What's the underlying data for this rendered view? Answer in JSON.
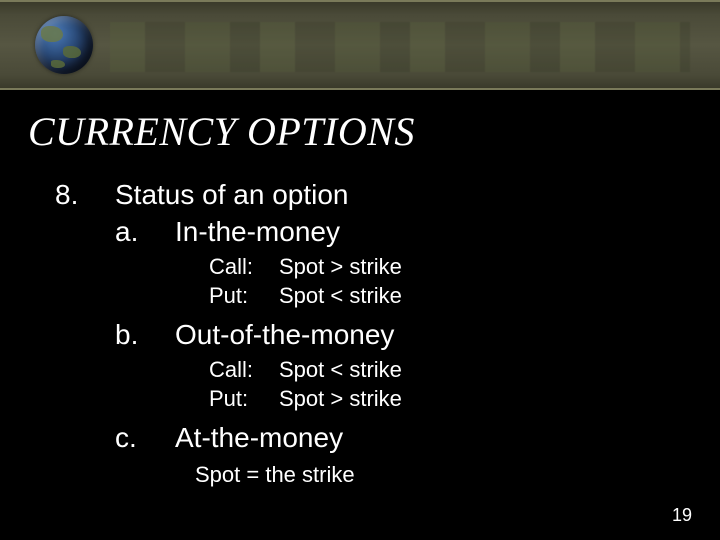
{
  "slide": {
    "title": "CURRENCY OPTIONS",
    "item_number": "8.",
    "item_heading": "Status of an option",
    "subitems": {
      "a": {
        "letter": "a.",
        "label": "In-the-money",
        "call_label": "Call:",
        "call_cond": "Spot > strike",
        "put_label": "Put:",
        "put_cond": "Spot < strike"
      },
      "b": {
        "letter": "b.",
        "label": "Out-of-the-money",
        "call_label": "Call:",
        "call_cond": "Spot < strike",
        "put_label": "Put:",
        "put_cond": "Spot > strike"
      },
      "c": {
        "letter": "c.",
        "label": "At-the-money",
        "cond": "Spot = the strike"
      }
    },
    "page_number": "19"
  },
  "style": {
    "background_color": "#000000",
    "text_color": "#ffffff",
    "title_font": "Times New Roman italic",
    "title_fontsize_pt": 30,
    "body_font": "Verdana",
    "body_fontsize_pt": 21,
    "detail_fontsize_pt": 16,
    "header_band_color": "#565642",
    "header_border_color": "#7a7a5a",
    "globe_gradient": [
      "#4a7ab8",
      "#1a2a48"
    ]
  }
}
